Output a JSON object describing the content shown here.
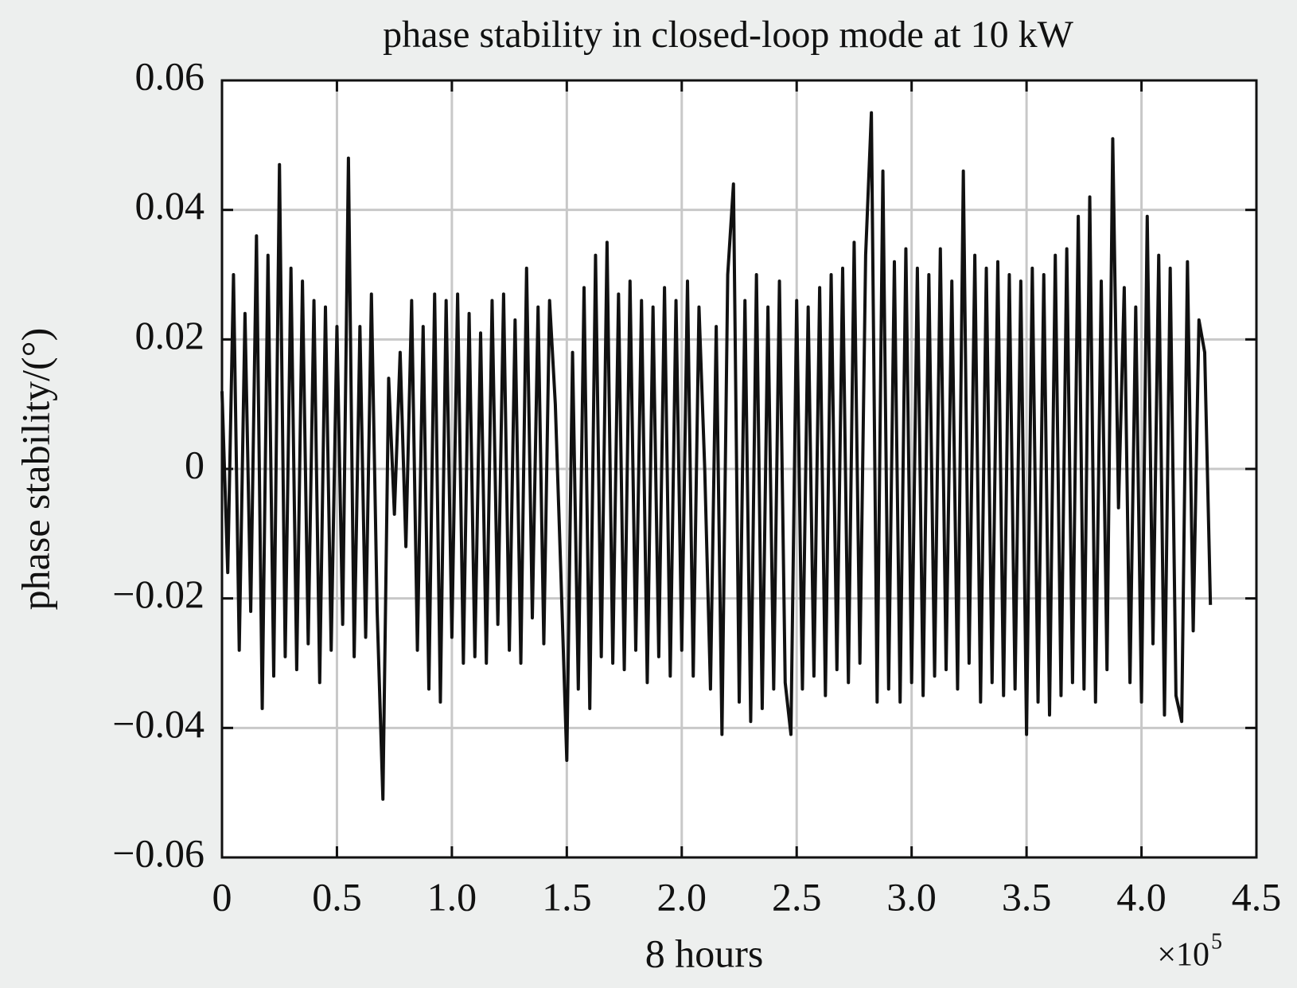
{
  "chart_data": {
    "type": "line",
    "title": "phase stability in closed-loop mode at 10 kW",
    "x_label": "8 hours",
    "y_label": "phase stability/(°)",
    "x_multiplier": "×10",
    "x_exponent": "5",
    "grid": true,
    "xlim": [
      0,
      4.5
    ],
    "xticks": [
      0,
      0.5,
      {
        "value": 1,
        "label": "1.0"
      },
      1.5,
      {
        "value": 2,
        "label": "2.0"
      },
      2.5,
      {
        "value": 3,
        "label": "3.0"
      },
      3.5,
      {
        "value": 4,
        "label": "4.0"
      },
      4.5
    ],
    "ylim": [
      -0.06,
      0.06
    ],
    "yticks": [
      {
        "value": -0.06,
        "label": "−0.06"
      },
      {
        "value": -0.04,
        "label": "−0.04"
      },
      {
        "value": -0.02,
        "label": "−0.02"
      },
      0,
      0.02,
      0.04,
      0.06
    ],
    "series": [
      {
        "color": "#111111",
        "x": [
          0,
          0.025,
          0.05,
          0.075,
          0.1,
          0.125,
          0.15,
          0.175,
          0.2,
          0.225,
          0.25,
          0.275,
          0.3,
          0.325,
          0.35,
          0.375,
          0.4,
          0.425,
          0.45,
          0.475,
          0.5,
          0.525,
          0.55,
          0.575,
          0.6,
          0.625,
          0.65,
          0.675,
          0.7,
          0.725,
          0.75,
          0.775,
          0.8,
          0.825,
          0.85,
          0.875,
          0.9,
          0.925,
          0.95,
          0.975,
          1,
          1.025,
          1.05,
          1.075,
          1.1,
          1.125,
          1.15,
          1.175,
          1.2,
          1.225,
          1.25,
          1.275,
          1.3,
          1.325,
          1.35,
          1.375,
          1.4,
          1.425,
          1.45,
          1.475,
          1.5,
          1.525,
          1.55,
          1.575,
          1.6,
          1.625,
          1.65,
          1.675,
          1.7,
          1.725,
          1.75,
          1.775,
          1.8,
          1.825,
          1.85,
          1.875,
          1.9,
          1.925,
          1.95,
          1.975,
          2,
          2.025,
          2.05,
          2.075,
          2.1,
          2.125,
          2.15,
          2.175,
          2.2,
          2.225,
          2.25,
          2.275,
          2.3,
          2.325,
          2.35,
          2.375,
          2.4,
          2.425,
          2.45,
          2.475,
          2.5,
          2.525,
          2.55,
          2.575,
          2.6,
          2.625,
          2.65,
          2.675,
          2.7,
          2.725,
          2.75,
          2.775,
          2.8,
          2.825,
          2.85,
          2.875,
          2.9,
          2.925,
          2.95,
          2.975,
          3,
          3.025,
          3.05,
          3.075,
          3.1,
          3.125,
          3.15,
          3.175,
          3.2,
          3.225,
          3.25,
          3.275,
          3.3,
          3.325,
          3.35,
          3.375,
          3.4,
          3.425,
          3.45,
          3.475,
          3.5,
          3.525,
          3.55,
          3.575,
          3.6,
          3.625,
          3.65,
          3.675,
          3.7,
          3.725,
          3.75,
          3.775,
          3.8,
          3.825,
          3.85,
          3.875,
          3.9,
          3.925,
          3.95,
          3.975,
          4,
          4.025,
          4.05,
          4.075,
          4.1,
          4.125,
          4.15,
          4.175,
          4.2,
          4.225,
          4.25,
          4.275,
          4.3
        ],
        "values": [
          0.012,
          -0.016,
          0.03,
          -0.028,
          0.024,
          -0.022,
          0.036,
          -0.037,
          0.033,
          -0.032,
          0.047,
          -0.029,
          0.031,
          -0.031,
          0.029,
          -0.027,
          0.026,
          -0.033,
          0.025,
          -0.028,
          0.022,
          -0.024,
          0.048,
          -0.029,
          0.022,
          -0.026,
          0.027,
          -0.022,
          -0.051,
          0.014,
          -0.007,
          0.018,
          -0.012,
          0.026,
          -0.028,
          0.022,
          -0.034,
          0.027,
          -0.036,
          0.026,
          -0.026,
          0.027,
          -0.03,
          0.024,
          -0.029,
          0.021,
          -0.03,
          0.026,
          -0.024,
          0.027,
          -0.028,
          0.023,
          -0.03,
          0.031,
          -0.023,
          0.025,
          -0.027,
          0.026,
          0.01,
          -0.017,
          -0.045,
          0.018,
          -0.034,
          0.028,
          -0.037,
          0.033,
          -0.029,
          0.035,
          -0.03,
          0.027,
          -0.031,
          0.029,
          -0.028,
          0.026,
          -0.033,
          0.025,
          -0.029,
          0.028,
          -0.032,
          0.026,
          -0.028,
          0.029,
          -0.032,
          0.025,
          0,
          -0.034,
          0.022,
          -0.041,
          0.03,
          0.044,
          -0.036,
          0.026,
          -0.039,
          0.03,
          -0.037,
          0.025,
          -0.034,
          0.029,
          -0.033,
          -0.041,
          0.026,
          -0.034,
          0.025,
          -0.032,
          0.028,
          -0.035,
          0.03,
          -0.031,
          0.031,
          -0.033,
          0.035,
          -0.03,
          0.033,
          0.055,
          -0.036,
          0.046,
          -0.034,
          0.032,
          -0.036,
          0.034,
          -0.033,
          0.031,
          -0.035,
          0.03,
          -0.032,
          0.034,
          -0.031,
          0.029,
          -0.034,
          0.046,
          -0.03,
          0.033,
          -0.036,
          0.031,
          -0.033,
          0.032,
          -0.035,
          0.03,
          -0.034,
          0.029,
          -0.041,
          0.031,
          -0.036,
          0.03,
          -0.038,
          0.033,
          -0.035,
          0.034,
          -0.033,
          0.039,
          -0.034,
          0.042,
          -0.036,
          0.029,
          -0.031,
          0.051,
          -0.006,
          0.028,
          -0.033,
          0.025,
          -0.036,
          0.039,
          -0.027,
          0.033,
          -0.038,
          0.031,
          -0.035,
          -0.039,
          0.032,
          -0.025,
          0.023,
          0.018,
          -0.021
        ]
      }
    ]
  }
}
